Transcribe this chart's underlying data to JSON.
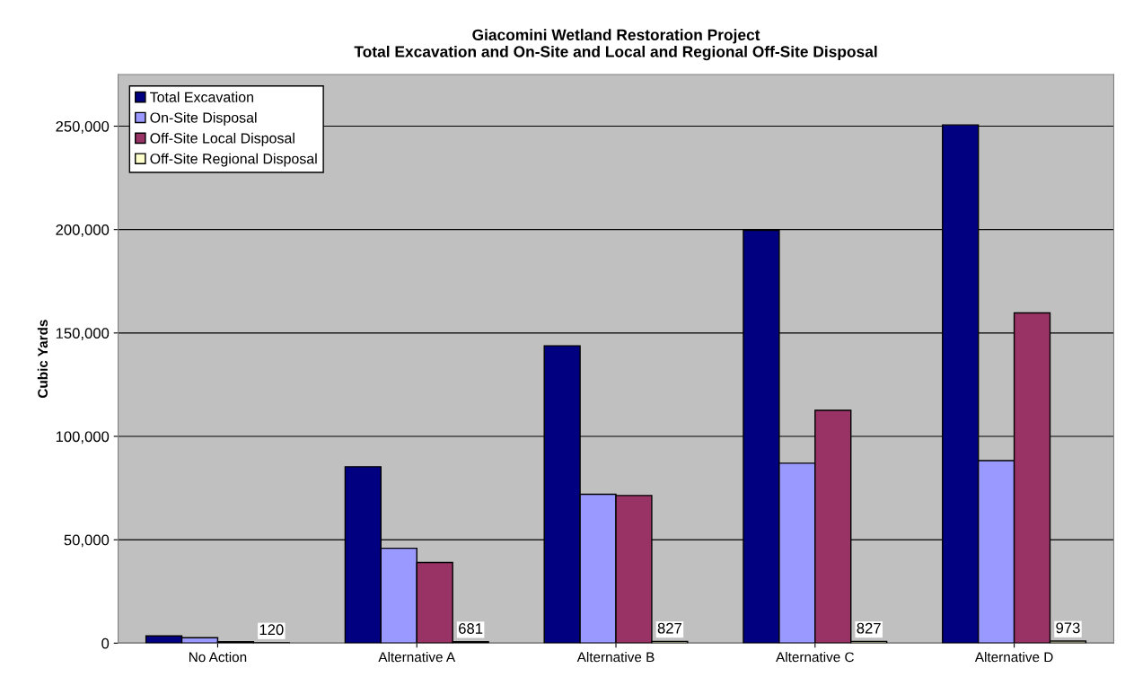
{
  "chart_data": {
    "type": "bar",
    "title": "Giacomini Wetland Restoration Project\nTotal Excavation and On-Site and Local and Regional Off-Site Disposal",
    "ylabel": "Cubic Yards",
    "categories": [
      "No Action",
      "Alternative A",
      "Alternative B",
      "Alternative C",
      "Alternative D"
    ],
    "series": [
      {
        "name": "Total Excavation",
        "color": "#000080",
        "values": [
          3500,
          85300,
          143800,
          199600,
          250600
        ]
      },
      {
        "name": "On-Site Disposal",
        "color": "#9999ff",
        "values": [
          2600,
          45900,
          72000,
          87000,
          88300
        ]
      },
      {
        "name": "Off-Site Local Disposal",
        "color": "#993366",
        "values": [
          700,
          39000,
          71400,
          112600,
          159700
        ]
      },
      {
        "name": "Off-Site Regional Disposal",
        "color": "#ffffcc",
        "values": [
          120,
          681,
          827,
          827,
          973
        ],
        "value_labels": [
          "120",
          "681",
          "827",
          "827",
          "973"
        ]
      }
    ],
    "ylim": [
      0,
      275000
    ],
    "yticks": [
      {
        "value": 0,
        "label": "0"
      },
      {
        "value": 50000,
        "label": "50,000"
      },
      {
        "value": 100000,
        "label": "100,000"
      },
      {
        "value": 150000,
        "label": "150,000"
      },
      {
        "value": 200000,
        "label": "200,000"
      },
      {
        "value": 250000,
        "label": "250,000"
      }
    ],
    "grid": "y",
    "legend": "top left"
  }
}
